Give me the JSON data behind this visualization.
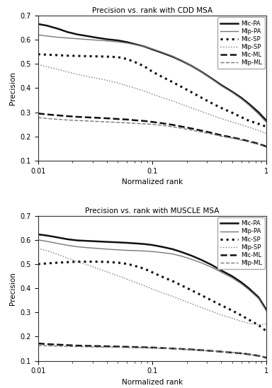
{
  "title1": "Precision vs. rank with CDD MSA",
  "title2": "Precision vs. rank with MUSCLE MSA",
  "xlabel": "Normalized rank",
  "ylabel": "Precision",
  "ylim": [
    0.1,
    0.7
  ],
  "xlim": [
    0.01,
    1.0
  ],
  "cdd": {
    "MlcPA": {
      "x": [
        0.01,
        0.012,
        0.015,
        0.018,
        0.022,
        0.027,
        0.033,
        0.04,
        0.05,
        0.06,
        0.07,
        0.085,
        0.1,
        0.12,
        0.15,
        0.18,
        0.22,
        0.27,
        0.33,
        0.4,
        0.5,
        0.6,
        0.7,
        0.85,
        1.0
      ],
      "y": [
        0.665,
        0.658,
        0.645,
        0.632,
        0.622,
        0.615,
        0.608,
        0.602,
        0.597,
        0.59,
        0.582,
        0.572,
        0.56,
        0.547,
        0.53,
        0.513,
        0.492,
        0.467,
        0.44,
        0.413,
        0.385,
        0.36,
        0.335,
        0.3,
        0.265
      ],
      "style": "solid",
      "lw": 1.8,
      "color": "#111111"
    },
    "MlpPA": {
      "x": [
        0.01,
        0.012,
        0.015,
        0.018,
        0.022,
        0.027,
        0.033,
        0.04,
        0.05,
        0.06,
        0.07,
        0.085,
        0.1,
        0.12,
        0.15,
        0.18,
        0.22,
        0.27,
        0.33,
        0.4,
        0.5,
        0.6,
        0.7,
        0.85,
        1.0
      ],
      "y": [
        0.62,
        0.615,
        0.61,
        0.607,
        0.604,
        0.601,
        0.598,
        0.595,
        0.591,
        0.586,
        0.58,
        0.572,
        0.562,
        0.549,
        0.532,
        0.514,
        0.492,
        0.466,
        0.438,
        0.41,
        0.382,
        0.356,
        0.33,
        0.293,
        0.258
      ],
      "style": "solid",
      "lw": 1.0,
      "color": "#777777"
    },
    "MlcSP": {
      "x": [
        0.01,
        0.012,
        0.015,
        0.018,
        0.022,
        0.027,
        0.033,
        0.04,
        0.05,
        0.06,
        0.07,
        0.085,
        0.1,
        0.12,
        0.15,
        0.18,
        0.22,
        0.27,
        0.33,
        0.4,
        0.5,
        0.6,
        0.7,
        0.85,
        1.0
      ],
      "y": [
        0.54,
        0.538,
        0.536,
        0.534,
        0.533,
        0.532,
        0.531,
        0.53,
        0.528,
        0.52,
        0.508,
        0.49,
        0.468,
        0.448,
        0.425,
        0.405,
        0.383,
        0.36,
        0.338,
        0.318,
        0.298,
        0.28,
        0.265,
        0.252,
        0.24
      ],
      "style": "dotted",
      "lw": 2.2,
      "color": "#111111"
    },
    "MlpSP": {
      "x": [
        0.01,
        0.012,
        0.015,
        0.018,
        0.022,
        0.027,
        0.033,
        0.04,
        0.05,
        0.06,
        0.07,
        0.085,
        0.1,
        0.12,
        0.15,
        0.18,
        0.22,
        0.27,
        0.33,
        0.4,
        0.5,
        0.6,
        0.7,
        0.85,
        1.0
      ],
      "y": [
        0.497,
        0.488,
        0.477,
        0.467,
        0.457,
        0.448,
        0.44,
        0.432,
        0.421,
        0.41,
        0.4,
        0.388,
        0.375,
        0.362,
        0.347,
        0.333,
        0.318,
        0.303,
        0.288,
        0.274,
        0.26,
        0.248,
        0.238,
        0.225,
        0.212
      ],
      "style": "dotted",
      "lw": 1.0,
      "color": "#777777"
    },
    "MlcML": {
      "x": [
        0.01,
        0.012,
        0.015,
        0.018,
        0.022,
        0.027,
        0.033,
        0.04,
        0.05,
        0.06,
        0.07,
        0.085,
        0.1,
        0.12,
        0.15,
        0.18,
        0.22,
        0.27,
        0.33,
        0.4,
        0.5,
        0.6,
        0.7,
        0.85,
        1.0
      ],
      "y": [
        0.295,
        0.291,
        0.287,
        0.284,
        0.281,
        0.279,
        0.277,
        0.275,
        0.272,
        0.27,
        0.267,
        0.264,
        0.26,
        0.255,
        0.248,
        0.241,
        0.233,
        0.224,
        0.215,
        0.205,
        0.196,
        0.188,
        0.18,
        0.17,
        0.158
      ],
      "style": "dashed",
      "lw": 1.8,
      "color": "#111111"
    },
    "MlpML": {
      "x": [
        0.01,
        0.012,
        0.015,
        0.018,
        0.022,
        0.027,
        0.033,
        0.04,
        0.05,
        0.06,
        0.07,
        0.085,
        0.1,
        0.12,
        0.15,
        0.18,
        0.22,
        0.27,
        0.33,
        0.4,
        0.5,
        0.6,
        0.7,
        0.85,
        1.0
      ],
      "y": [
        0.278,
        0.274,
        0.271,
        0.268,
        0.266,
        0.264,
        0.262,
        0.26,
        0.258,
        0.256,
        0.254,
        0.252,
        0.25,
        0.246,
        0.24,
        0.234,
        0.226,
        0.218,
        0.21,
        0.201,
        0.193,
        0.185,
        0.177,
        0.167,
        0.155
      ],
      "style": "dashed",
      "lw": 1.0,
      "color": "#777777"
    }
  },
  "muscle": {
    "MlcPA": {
      "x": [
        0.01,
        0.012,
        0.015,
        0.018,
        0.022,
        0.027,
        0.033,
        0.04,
        0.05,
        0.06,
        0.07,
        0.085,
        0.1,
        0.12,
        0.15,
        0.18,
        0.22,
        0.27,
        0.33,
        0.4,
        0.5,
        0.6,
        0.7,
        0.85,
        1.0
      ],
      "y": [
        0.623,
        0.618,
        0.61,
        0.603,
        0.598,
        0.596,
        0.594,
        0.592,
        0.59,
        0.588,
        0.586,
        0.583,
        0.579,
        0.572,
        0.562,
        0.55,
        0.535,
        0.517,
        0.497,
        0.474,
        0.45,
        0.425,
        0.4,
        0.363,
        0.31
      ],
      "style": "solid",
      "lw": 1.8,
      "color": "#111111"
    },
    "MlpPA": {
      "x": [
        0.01,
        0.012,
        0.015,
        0.018,
        0.022,
        0.027,
        0.033,
        0.04,
        0.05,
        0.06,
        0.07,
        0.085,
        0.1,
        0.12,
        0.15,
        0.18,
        0.22,
        0.27,
        0.33,
        0.4,
        0.5,
        0.6,
        0.7,
        0.85,
        1.0
      ],
      "y": [
        0.6,
        0.594,
        0.585,
        0.578,
        0.572,
        0.568,
        0.565,
        0.562,
        0.559,
        0.557,
        0.556,
        0.554,
        0.552,
        0.548,
        0.542,
        0.533,
        0.52,
        0.505,
        0.487,
        0.467,
        0.443,
        0.419,
        0.394,
        0.358,
        0.305
      ],
      "style": "solid",
      "lw": 1.0,
      "color": "#777777"
    },
    "MlcSP": {
      "x": [
        0.01,
        0.012,
        0.015,
        0.018,
        0.022,
        0.027,
        0.033,
        0.04,
        0.05,
        0.06,
        0.07,
        0.085,
        0.1,
        0.12,
        0.15,
        0.18,
        0.22,
        0.27,
        0.33,
        0.4,
        0.5,
        0.6,
        0.7,
        0.85,
        1.0
      ],
      "y": [
        0.5,
        0.503,
        0.506,
        0.508,
        0.51,
        0.51,
        0.51,
        0.509,
        0.506,
        0.501,
        0.493,
        0.481,
        0.466,
        0.449,
        0.43,
        0.412,
        0.392,
        0.371,
        0.35,
        0.33,
        0.308,
        0.288,
        0.27,
        0.248,
        0.222
      ],
      "style": "dotted",
      "lw": 2.2,
      "color": "#111111"
    },
    "MlpSP": {
      "x": [
        0.01,
        0.012,
        0.015,
        0.018,
        0.022,
        0.027,
        0.033,
        0.04,
        0.05,
        0.06,
        0.07,
        0.085,
        0.1,
        0.12,
        0.15,
        0.18,
        0.22,
        0.27,
        0.33,
        0.4,
        0.5,
        0.6,
        0.7,
        0.85,
        1.0
      ],
      "y": [
        0.565,
        0.555,
        0.54,
        0.525,
        0.51,
        0.497,
        0.482,
        0.468,
        0.452,
        0.438,
        0.425,
        0.411,
        0.397,
        0.383,
        0.367,
        0.352,
        0.336,
        0.32,
        0.305,
        0.29,
        0.276,
        0.264,
        0.255,
        0.249,
        0.253
      ],
      "style": "dotted",
      "lw": 1.0,
      "color": "#777777"
    },
    "MlcML": {
      "x": [
        0.01,
        0.012,
        0.015,
        0.018,
        0.022,
        0.027,
        0.033,
        0.04,
        0.05,
        0.06,
        0.07,
        0.085,
        0.1,
        0.12,
        0.15,
        0.18,
        0.22,
        0.27,
        0.33,
        0.4,
        0.5,
        0.6,
        0.7,
        0.85,
        1.0
      ],
      "y": [
        0.172,
        0.169,
        0.167,
        0.165,
        0.163,
        0.162,
        0.161,
        0.16,
        0.159,
        0.158,
        0.157,
        0.156,
        0.155,
        0.153,
        0.151,
        0.149,
        0.147,
        0.144,
        0.141,
        0.138,
        0.134,
        0.131,
        0.127,
        0.121,
        0.113
      ],
      "style": "dashed",
      "lw": 1.8,
      "color": "#111111"
    },
    "MlpML": {
      "x": [
        0.01,
        0.012,
        0.015,
        0.018,
        0.022,
        0.027,
        0.033,
        0.04,
        0.05,
        0.06,
        0.07,
        0.085,
        0.1,
        0.12,
        0.15,
        0.18,
        0.22,
        0.27,
        0.33,
        0.4,
        0.5,
        0.6,
        0.7,
        0.85,
        1.0
      ],
      "y": [
        0.163,
        0.162,
        0.161,
        0.16,
        0.159,
        0.158,
        0.157,
        0.157,
        0.156,
        0.155,
        0.155,
        0.154,
        0.153,
        0.152,
        0.15,
        0.148,
        0.146,
        0.143,
        0.141,
        0.138,
        0.135,
        0.131,
        0.127,
        0.122,
        0.115
      ],
      "style": "dashed",
      "lw": 1.0,
      "color": "#777777"
    }
  },
  "legend_labels": [
    "Mlc-PA",
    "Mlp-PA",
    "Mlc-SP",
    "Mlp-SP",
    "Mlc-ML",
    "Mlp-ML"
  ],
  "bg_color": "#f0f0f0",
  "face_color": "#ffffff"
}
